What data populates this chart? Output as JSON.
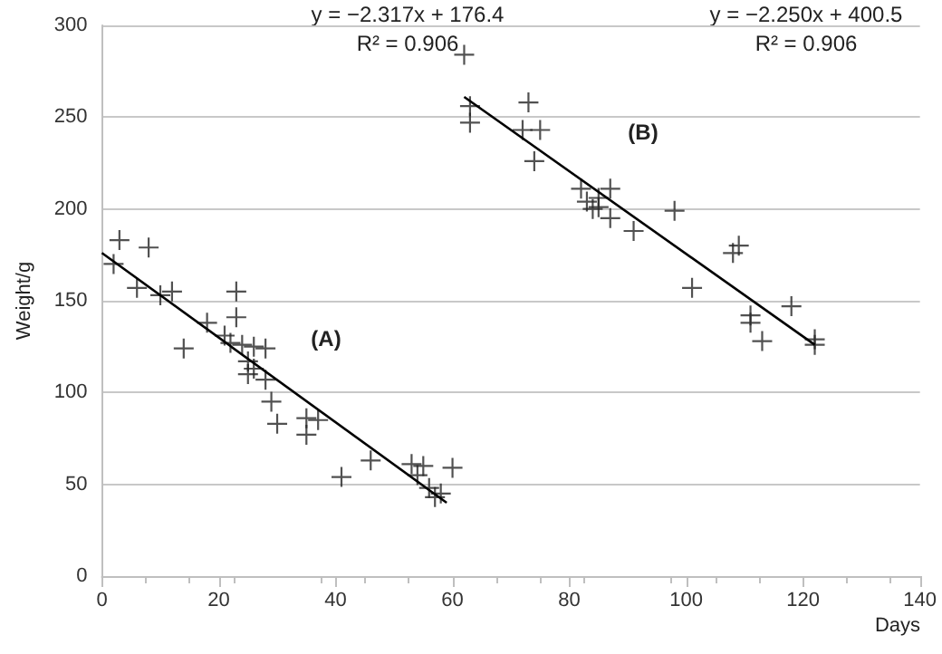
{
  "chart_data": {
    "type": "scatter",
    "xlabel": "Days",
    "ylabel": "Weight/g",
    "annotations": [
      "y = −2.317x + 176.4",
      "R² = 0.906",
      "y = −2.250x + 400.5",
      "R² = 0.906",
      "(A)",
      "(B)"
    ],
    "series": [
      {
        "marker": "cross",
        "color": "#262626",
        "x": [
          2,
          3,
          8,
          6,
          10,
          12,
          14,
          18,
          21,
          22,
          23,
          23,
          24,
          25,
          25,
          26,
          26,
          28,
          28,
          29,
          30,
          35,
          35,
          37,
          41,
          46,
          53,
          54,
          55,
          56,
          57,
          58,
          60
        ],
        "values": [
          170,
          183,
          179,
          157,
          153,
          155,
          124,
          138,
          131,
          127,
          155,
          141,
          126,
          110,
          117,
          113,
          125,
          124,
          107,
          95,
          83,
          86,
          77,
          85,
          54,
          63,
          61,
          55,
          60,
          48,
          43,
          45,
          59
        ]
      },
      {
        "marker": "cross",
        "color": "#262626",
        "x": [
          62,
          63,
          63,
          72,
          73,
          74,
          75,
          82,
          83,
          84,
          85,
          85,
          87,
          87,
          91,
          98,
          101,
          108,
          109,
          111,
          111,
          113,
          118,
          122,
          122
        ],
        "values": [
          284,
          256,
          247,
          243,
          258,
          226,
          243,
          211,
          204,
          200,
          206,
          201,
          211,
          195,
          188,
          199,
          157,
          176,
          180,
          142,
          138,
          128,
          147,
          126,
          129
        ]
      },
      {
        "type": "line",
        "marker": "none",
        "line_style": "solid",
        "color": "#000000",
        "x": [
          0,
          59
        ],
        "values": [
          176,
          40
        ]
      },
      {
        "type": "line",
        "marker": "none",
        "line_style": "solid",
        "color": "#000000",
        "x": [
          62,
          122
        ],
        "values": [
          261,
          126
        ]
      }
    ],
    "xlim": [
      0,
      140
    ],
    "xticks": [
      0,
      20,
      40,
      60,
      80,
      100,
      120,
      140
    ],
    "ylim": [
      0,
      300
    ],
    "yticks": [
      0,
      50,
      100,
      150,
      200,
      250,
      300
    ],
    "grid": "y"
  }
}
